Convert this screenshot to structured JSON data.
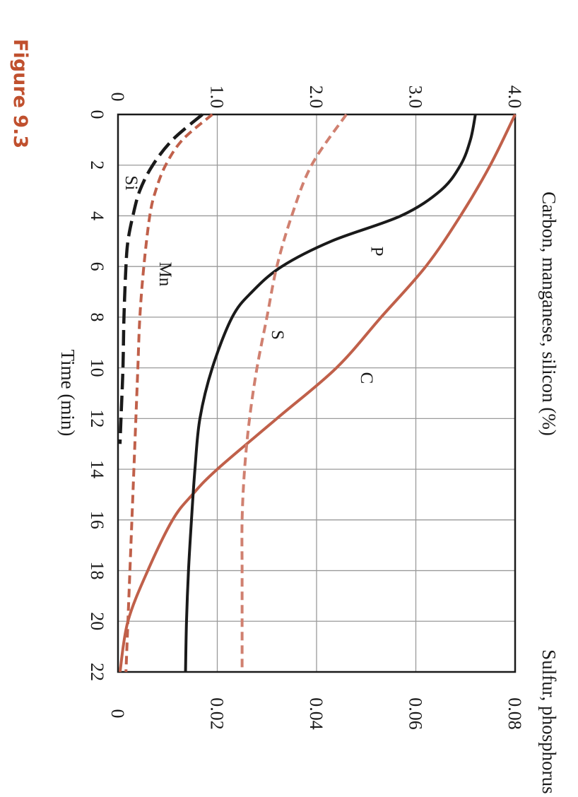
{
  "figure_label": "Figure 9.3",
  "chart_data": {
    "type": "line",
    "orientation": "rotated 90 degrees clockwise",
    "x_axis": {
      "label": "Time (min)",
      "range": [
        0,
        22
      ],
      "ticks": [
        "0",
        "2",
        "4",
        "6",
        "8",
        "10",
        "12",
        "14",
        "16",
        "18",
        "20",
        "22"
      ]
    },
    "y_axis_left": {
      "label": "Carbon, manganese, silicon (%)",
      "range": [
        0,
        4.0
      ],
      "ticks": [
        "0",
        "1.0",
        "2.0",
        "3.0",
        "4.0"
      ]
    },
    "y_axis_right": {
      "label": "Sulfur, phosphorus (%)",
      "range": [
        0,
        0.08
      ],
      "ticks": [
        "0",
        "0.02",
        "0.04",
        "0.06",
        "0.08"
      ]
    },
    "grid": true,
    "series": [
      {
        "name": "C",
        "axis": "left",
        "color": "#c0604a",
        "style": "solid",
        "points": [
          [
            0,
            4.0
          ],
          [
            2,
            3.75
          ],
          [
            4,
            3.45
          ],
          [
            6,
            3.1
          ],
          [
            8,
            2.65
          ],
          [
            10,
            2.2
          ],
          [
            12,
            1.6
          ],
          [
            14,
            1.0
          ],
          [
            15,
            0.75
          ],
          [
            16,
            0.55
          ],
          [
            18,
            0.3
          ],
          [
            20,
            0.1
          ],
          [
            22,
            0.02
          ]
        ]
      },
      {
        "name": "Mn",
        "axis": "left",
        "color": "#c0604a",
        "style": "dashed",
        "points": [
          [
            0,
            0.95
          ],
          [
            1,
            0.65
          ],
          [
            2,
            0.48
          ],
          [
            3,
            0.38
          ],
          [
            4,
            0.32
          ],
          [
            6,
            0.26
          ],
          [
            8,
            0.22
          ],
          [
            10,
            0.2
          ],
          [
            12,
            0.18
          ],
          [
            14,
            0.16
          ],
          [
            16,
            0.14
          ],
          [
            18,
            0.12
          ],
          [
            20,
            0.1
          ],
          [
            22,
            0.08
          ]
        ]
      },
      {
        "name": "Si",
        "axis": "left",
        "color": "#1a1a1a",
        "style": "dashed",
        "points": [
          [
            0,
            0.85
          ],
          [
            1,
            0.55
          ],
          [
            2,
            0.35
          ],
          [
            3,
            0.22
          ],
          [
            4,
            0.15
          ],
          [
            5,
            0.1
          ],
          [
            6,
            0.08
          ],
          [
            8,
            0.06
          ],
          [
            10,
            0.05
          ],
          [
            12,
            0.03
          ],
          [
            13,
            0.02
          ]
        ]
      },
      {
        "name": "P",
        "axis": "right",
        "color": "#1a1a1a",
        "style": "solid",
        "points": [
          [
            0,
            0.072
          ],
          [
            1,
            0.071
          ],
          [
            2,
            0.069
          ],
          [
            3,
            0.065
          ],
          [
            4,
            0.057
          ],
          [
            5,
            0.043
          ],
          [
            6,
            0.033
          ],
          [
            7,
            0.027
          ],
          [
            8,
            0.023
          ],
          [
            10,
            0.019
          ],
          [
            12,
            0.0165
          ],
          [
            14,
            0.0155
          ],
          [
            16,
            0.0148
          ],
          [
            18,
            0.0142
          ],
          [
            20,
            0.0138
          ],
          [
            22,
            0.0136
          ]
        ]
      },
      {
        "name": "S",
        "axis": "right",
        "color": "#d08070",
        "style": "dashed",
        "points": [
          [
            0,
            0.046
          ],
          [
            2,
            0.039
          ],
          [
            4,
            0.035
          ],
          [
            6,
            0.032
          ],
          [
            8,
            0.03
          ],
          [
            10,
            0.028
          ],
          [
            12,
            0.0265
          ],
          [
            14,
            0.0255
          ],
          [
            16,
            0.025
          ],
          [
            18,
            0.025
          ],
          [
            20,
            0.025
          ],
          [
            22,
            0.025
          ]
        ]
      }
    ]
  }
}
